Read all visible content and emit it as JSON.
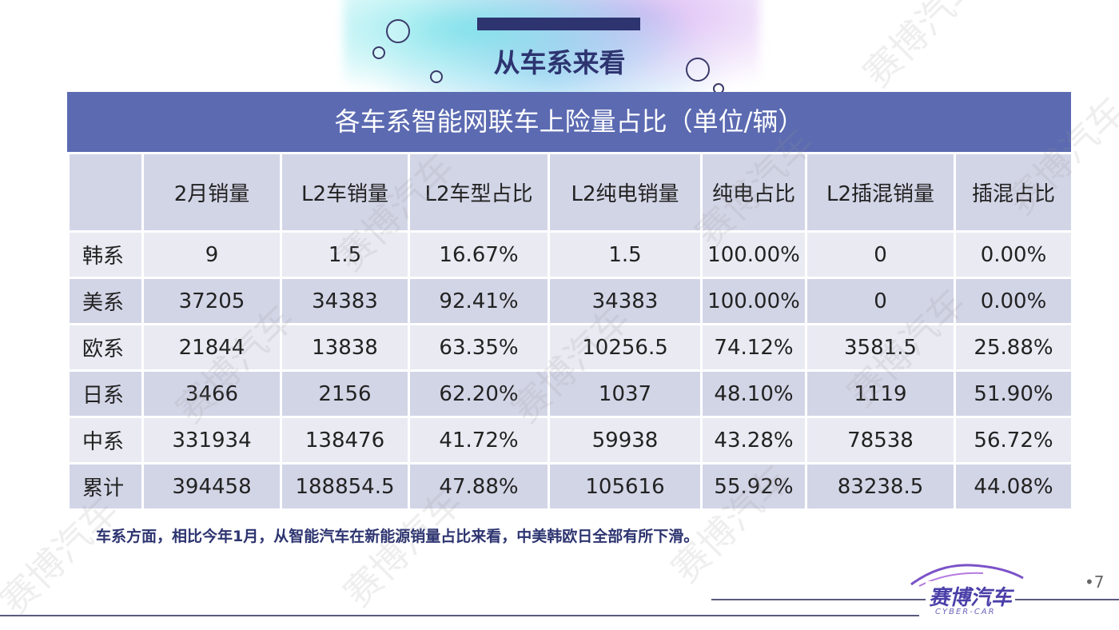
{
  "page": {
    "title": "从车系来看",
    "number": "•7"
  },
  "table": {
    "caption": "各车系智能网联车上险量占比（单位/辆）",
    "headers": [
      "",
      "2月销量",
      "L2车销量",
      "L2车型占比",
      "L2纯电销量",
      "纯电占比",
      "L2插混销量",
      "插混占比"
    ],
    "rows": [
      [
        "韩系",
        "9",
        "1.5",
        "16.67%",
        "1.5",
        "100.00%",
        "0",
        "0.00%"
      ],
      [
        "美系",
        "37205",
        "34383",
        "92.41%",
        "34383",
        "100.00%",
        "0",
        "0.00%"
      ],
      [
        "欧系",
        "21844",
        "13838",
        "63.35%",
        "10256.5",
        "74.12%",
        "3581.5",
        "25.88%"
      ],
      [
        "日系",
        "3466",
        "2156",
        "62.20%",
        "1037",
        "48.10%",
        "1119",
        "51.90%"
      ],
      [
        "中系",
        "331934",
        "138476",
        "41.72%",
        "59938",
        "43.28%",
        "78538",
        "56.72%"
      ],
      [
        "累计",
        "394458",
        "188854.5",
        "47.88%",
        "105616",
        "55.92%",
        "83238.5",
        "44.08%"
      ]
    ]
  },
  "note": "车系方面，相比今年1月，从智能汽车在新能源销量占比来看，中美韩欧日全部有所下滑。",
  "logo": {
    "name": "赛博汽车",
    "tagline": "CYBER-CAR"
  },
  "watermark": "赛博汽车",
  "colors": {
    "header_band": "#5b6ab1",
    "row_light": "#e9eaf2",
    "row_dark": "#d2d5e6",
    "title": "#2d3470"
  }
}
